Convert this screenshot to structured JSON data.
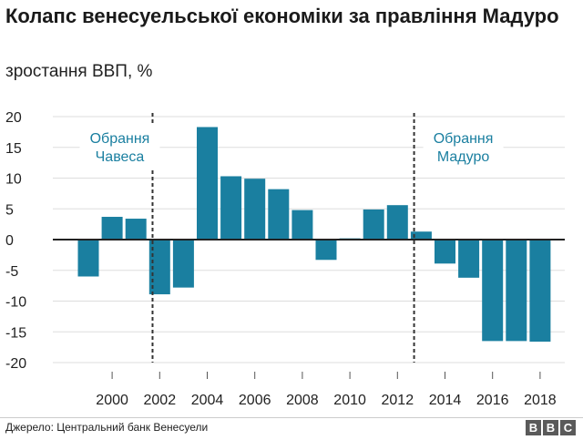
{
  "header": {
    "title": "Колапс венесуельської економіки за правління Мадуро",
    "subtitle": "зростання ВВП, %"
  },
  "footer": {
    "source": "Джерело: Центральний банк Венесуели",
    "logo_letters": [
      "B",
      "B",
      "C"
    ]
  },
  "colors": {
    "bar": "#1a7fa0",
    "annotation": "#1a7fa0",
    "grid": "#dddddd",
    "zero_line": "#222222"
  },
  "chart_data": {
    "type": "bar",
    "title": "Колапс венесуельської економіки за правління Мадуро",
    "ylabel": "зростання ВВП, %",
    "xlabel": "",
    "categories": [
      "1999",
      "2000",
      "2001",
      "2002",
      "2003",
      "2004",
      "2005",
      "2006",
      "2007",
      "2008",
      "2009",
      "2010",
      "2011",
      "2012",
      "2013",
      "2014",
      "2015",
      "2016",
      "2017",
      "2018"
    ],
    "values": [
      -6.0,
      3.7,
      3.4,
      -8.9,
      -7.8,
      18.3,
      10.3,
      9.9,
      8.2,
      4.8,
      -3.3,
      0.2,
      4.9,
      5.6,
      1.3,
      -3.9,
      -6.2,
      -16.5,
      -16.5,
      -16.6
    ],
    "ylim": [
      -20,
      20
    ],
    "yticks": [
      20,
      15,
      10,
      5,
      0,
      -5,
      -10,
      -15,
      -20
    ],
    "ytick_labels": [
      "20",
      "15",
      "10",
      "5",
      "0",
      "-5",
      "-10",
      "-15",
      "-20"
    ],
    "xticks": [
      "2000",
      "2002",
      "2004",
      "2006",
      "2008",
      "2010",
      "2012",
      "2014",
      "2016",
      "2018"
    ],
    "grid": true,
    "legend": "none",
    "annotations": [
      {
        "after_category": "2001",
        "lines": [
          "Обрання",
          "Чавеса"
        ],
        "side": "left"
      },
      {
        "after_category": "2012",
        "lines": [
          "Обрання",
          "Мадуро"
        ],
        "side": "right"
      }
    ]
  }
}
